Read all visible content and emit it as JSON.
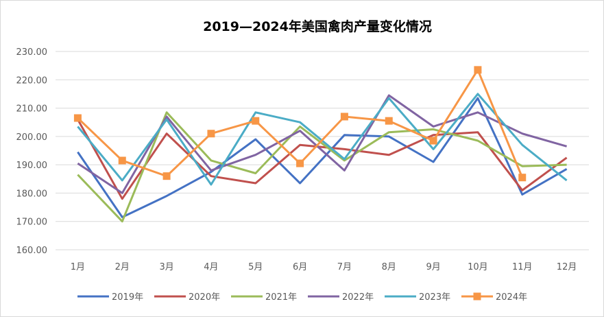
{
  "chart_data": {
    "type": "line",
    "title": "2019—2024年美国禽肉产量变化情况",
    "xlabel": "",
    "ylabel": "",
    "categories": [
      "1月",
      "2月",
      "3月",
      "4月",
      "5月",
      "6月",
      "7月",
      "8月",
      "9月",
      "10月",
      "11月",
      "12月"
    ],
    "ylim": [
      160,
      230
    ],
    "yticks": [
      "160.00",
      "170.00",
      "180.00",
      "190.00",
      "200.00",
      "210.00",
      "220.00",
      "230.00"
    ],
    "grid": true,
    "legend": "bottom",
    "series": [
      {
        "name": "2019年",
        "color": "#4472c4",
        "marker": "none",
        "values": [
          194.5,
          171.5,
          179,
          187.5,
          199,
          183.5,
          200.5,
          200,
          191,
          213.5,
          179.5,
          188.5
        ]
      },
      {
        "name": "2020年",
        "color": "#c0504d",
        "marker": "none",
        "values": [
          206,
          178,
          201,
          186,
          183.5,
          197,
          195.5,
          193.5,
          200.5,
          201.5,
          181,
          192.5
        ]
      },
      {
        "name": "2021年",
        "color": "#9bbb59",
        "marker": "none",
        "values": [
          186.5,
          170,
          208.5,
          191.5,
          187,
          203.5,
          191.5,
          201.5,
          202.5,
          198.5,
          189.5,
          190
        ]
      },
      {
        "name": "2022年",
        "color": "#8064a2",
        "marker": "none",
        "values": [
          190.5,
          180,
          207,
          188,
          193.5,
          202,
          188,
          214.5,
          203.5,
          208.5,
          201,
          196.5
        ]
      },
      {
        "name": "2023年",
        "color": "#4bacc6",
        "marker": "none",
        "values": [
          203.5,
          184.5,
          206,
          183,
          208.5,
          205,
          192,
          213.5,
          195.5,
          215,
          197,
          184.5
        ]
      },
      {
        "name": "2024年",
        "color": "#f79646",
        "marker": "square",
        "values": [
          206.5,
          191.5,
          186,
          201,
          205.5,
          190.5,
          207,
          205.5,
          198.5,
          223.5,
          185.5,
          null
        ]
      }
    ]
  }
}
